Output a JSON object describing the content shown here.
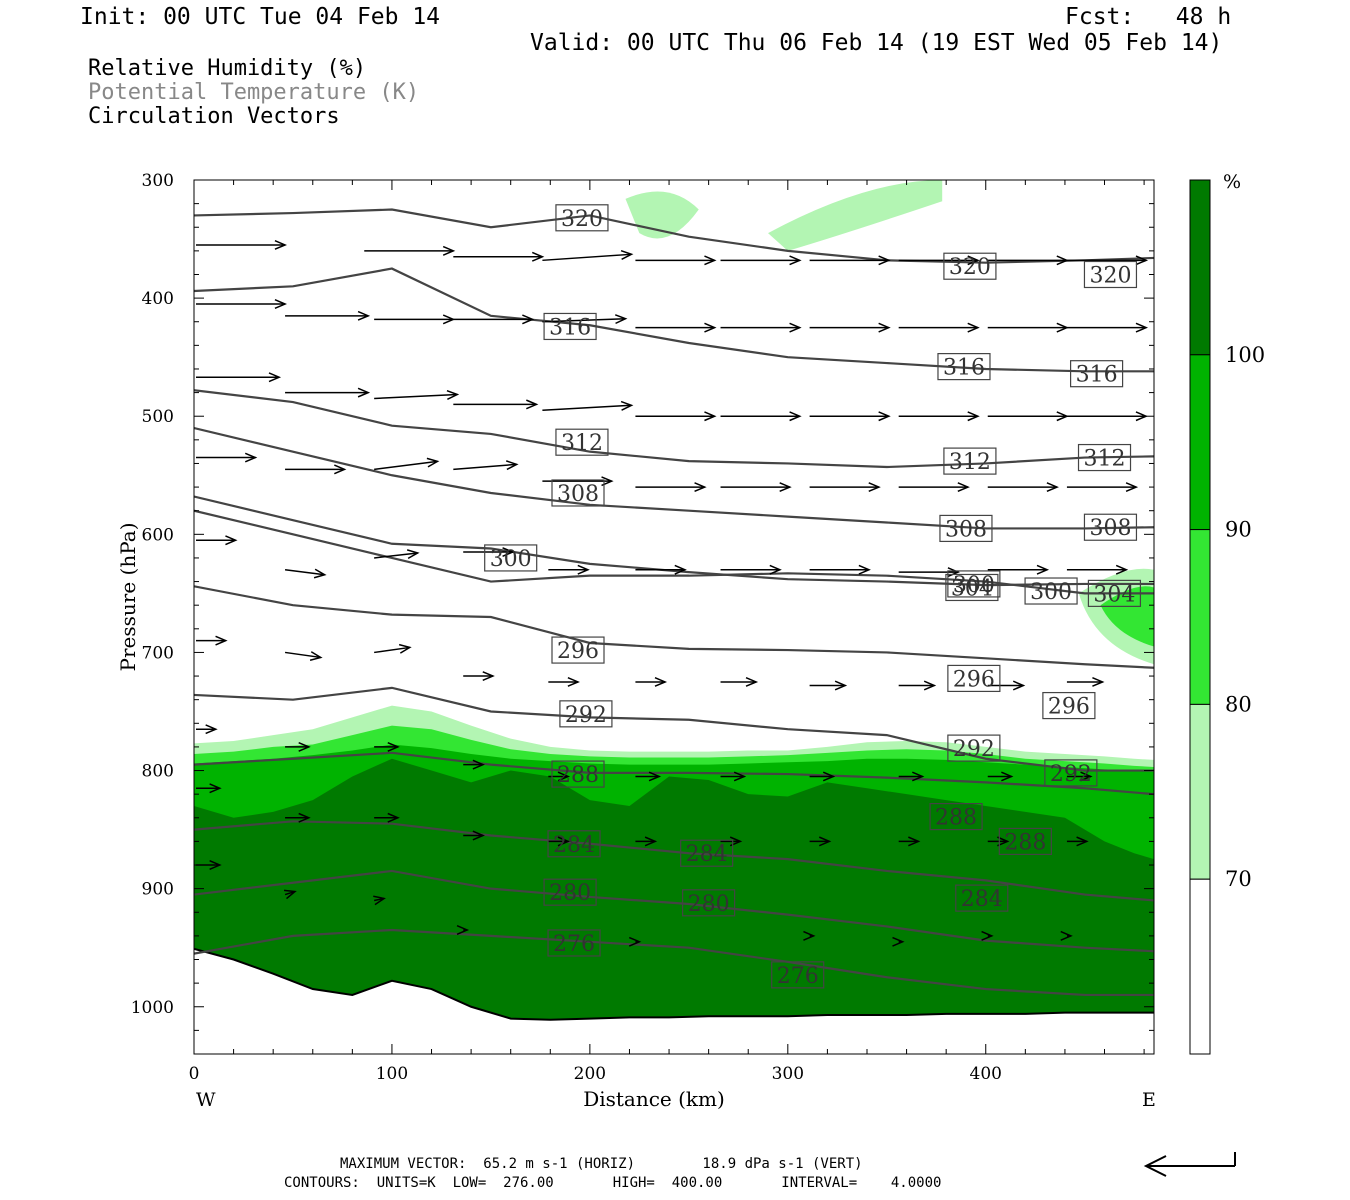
{
  "header": {
    "init": "Init: 00 UTC Tue 04 Feb 14",
    "fcst": "Fcst:   48 h",
    "valid": "Valid: 00 UTC Thu 06 Feb 14 (19 EST Wed 05 Feb 14)"
  },
  "fields": {
    "rh": "Relative Humidity (%)",
    "theta": "Potential Temperature (K)",
    "vectors": "Circulation Vectors"
  },
  "footer": {
    "max_vector": "MAXIMUM VECTOR:  65.2 m s-1 (HORIZ)        18.9 dPa s-1 (VERT)",
    "contours": "CONTOURS:  UNITS=K  LOW=  276.00       HIGH=  400.00       INTERVAL=    4.0000"
  },
  "colors": {
    "rh_70_80": "#b3f5b3",
    "rh_80_90": "#33e633",
    "rh_90_100": "#00b300",
    "rh_100": "#007a00",
    "contour": "#444444"
  },
  "chart_data": {
    "type": "cross-section",
    "xlabel": "Distance (km)",
    "ylabel": "Pressure (hPa)",
    "xlim": [
      0,
      485
    ],
    "ylim": [
      1040,
      300
    ],
    "x_ticks": [
      0,
      100,
      200,
      300,
      400
    ],
    "y_ticks": [
      300,
      400,
      500,
      600,
      700,
      800,
      900,
      1000
    ],
    "x_end_labels": {
      "left": "W",
      "right": "E"
    },
    "colorbar": {
      "unit": "%",
      "levels": [
        70,
        80,
        90,
        100
      ]
    },
    "rh_bands": [
      {
        "rh": "70-80",
        "top_p": [
          777,
          775,
          770,
          765,
          755,
          745,
          750,
          762,
          773,
          780,
          783,
          784,
          784,
          784,
          783,
          783,
          780,
          776,
          775,
          776,
          780,
          784,
          786,
          788,
          790,
          791
        ]
      },
      {
        "rh": "80-90",
        "top_p": [
          786,
          784,
          780,
          778,
          770,
          762,
          765,
          774,
          782,
          786,
          788,
          789,
          789,
          789,
          788,
          787,
          785,
          783,
          782,
          783,
          786,
          790,
          792,
          794,
          796,
          797
        ]
      },
      {
        "rh": "90-100",
        "top_p": [
          794,
          792,
          790,
          787,
          783,
          778,
          781,
          786,
          790,
          792,
          794,
          795,
          795,
          795,
          794,
          793,
          792,
          790,
          790,
          791,
          793,
          795,
          797,
          799,
          800,
          801
        ]
      },
      {
        "rh": "100",
        "top_p": [
          830,
          840,
          835,
          825,
          805,
          790,
          800,
          810,
          800,
          805,
          825,
          830,
          805,
          808,
          820,
          822,
          810,
          815,
          820,
          825,
          830,
          835,
          840,
          860,
          870,
          875
        ]
      }
    ],
    "band_x": [
      0,
      20,
      40,
      60,
      80,
      100,
      120,
      140,
      160,
      180,
      200,
      220,
      240,
      260,
      280,
      300,
      320,
      340,
      360,
      380,
      400,
      420,
      440,
      460,
      475,
      485
    ],
    "surface_p": [
      951,
      960,
      972,
      985,
      990,
      978,
      985,
      1000,
      1010,
      1011,
      1010,
      1009,
      1009,
      1008,
      1008,
      1008,
      1007,
      1007,
      1007,
      1006,
      1006,
      1006,
      1005,
      1005,
      1005,
      1005
    ],
    "theta_x": [
      0,
      50,
      100,
      150,
      200,
      250,
      300,
      350,
      400,
      450,
      485
    ],
    "theta_contours": [
      {
        "label": "320",
        "p": [
          330,
          328,
          325,
          340,
          330,
          348,
          360,
          368,
          370,
          368,
          366
        ],
        "label_pos": [
          [
            196,
            332
          ],
          [
            392,
            373
          ],
          [
            463,
            380
          ]
        ]
      },
      {
        "label": "316",
        "p": [
          394,
          390,
          375,
          415,
          423,
          438,
          450,
          455,
          460,
          462,
          462
        ],
        "label_pos": [
          [
            190,
            424
          ],
          [
            389,
            458
          ],
          [
            456,
            464
          ]
        ]
      },
      {
        "label": "312",
        "p": [
          478,
          488,
          508,
          515,
          530,
          538,
          540,
          543,
          540,
          535,
          534
        ],
        "label_pos": [
          [
            196,
            522
          ],
          [
            392,
            538
          ],
          [
            460,
            535
          ]
        ]
      },
      {
        "label": "308",
        "p": [
          510,
          530,
          550,
          565,
          575,
          580,
          585,
          590,
          595,
          595,
          594
        ],
        "label_pos": [
          [
            194,
            565
          ],
          [
            390,
            595
          ],
          [
            463,
            594
          ]
        ]
      },
      {
        "label": "300",
        "p": [
          568,
          588,
          608,
          612,
          625,
          632,
          638,
          640,
          643,
          642,
          642
        ],
        "label_pos": [
          [
            160,
            620
          ],
          [
            394,
            642
          ],
          [
            433,
            648
          ]
        ]
      },
      {
        "label": "304",
        "p": [
          580,
          600,
          620,
          640,
          635,
          635,
          633,
          635,
          640,
          650,
          650
        ],
        "label_pos": [
          [
            393,
            645
          ],
          [
            465,
            650
          ]
        ]
      },
      {
        "label": "296",
        "p": [
          644,
          660,
          668,
          670,
          692,
          697,
          698,
          700,
          705,
          710,
          713
        ],
        "label_pos": [
          [
            194,
            698
          ],
          [
            394,
            722
          ],
          [
            442,
            745
          ]
        ]
      },
      {
        "label": "292",
        "p": [
          736,
          740,
          730,
          750,
          755,
          757,
          765,
          770,
          790,
          800,
          800
        ],
        "label_pos": [
          [
            198,
            752
          ],
          [
            394,
            781
          ],
          [
            443,
            802
          ]
        ]
      },
      {
        "label": "288",
        "p": [
          795,
          790,
          785,
          795,
          802,
          802,
          803,
          806,
          810,
          815,
          820
        ],
        "label_pos": [
          [
            194,
            803
          ],
          [
            385,
            839
          ],
          [
            420,
            860
          ]
        ]
      },
      {
        "label": "284",
        "p": [
          850,
          843,
          845,
          855,
          862,
          870,
          875,
          885,
          893,
          905,
          910
        ],
        "label_pos": [
          [
            192,
            862
          ],
          [
            259,
            870
          ],
          [
            398,
            908
          ]
        ]
      },
      {
        "label": "280",
        "p": [
          905,
          895,
          885,
          900,
          907,
          913,
          922,
          932,
          944,
          950,
          953
        ],
        "label_pos": [
          [
            190,
            903
          ],
          [
            260,
            912
          ]
        ]
      },
      {
        "label": "276",
        "p": [
          955,
          940,
          935,
          940,
          945,
          950,
          962,
          975,
          985,
          990,
          990
        ],
        "label_pos": [
          [
            192,
            946
          ],
          [
            305,
            973
          ]
        ]
      }
    ],
    "vectors": [
      [
        0,
        355,
        45,
        0
      ],
      [
        85,
        360,
        45,
        0
      ],
      [
        130,
        365,
        45,
        0
      ],
      [
        175,
        368,
        45,
        -6
      ],
      [
        222,
        368,
        40,
        0
      ],
      [
        265,
        368,
        40,
        0
      ],
      [
        310,
        368,
        40,
        0
      ],
      [
        355,
        368,
        40,
        0
      ],
      [
        400,
        368,
        40,
        0
      ],
      [
        440,
        368,
        40,
        0
      ],
      [
        0,
        405,
        45,
        0
      ],
      [
        45,
        415,
        42,
        0
      ],
      [
        90,
        418,
        40,
        0
      ],
      [
        130,
        418,
        40,
        0
      ],
      [
        175,
        420,
        42,
        -3
      ],
      [
        222,
        425,
        40,
        0
      ],
      [
        265,
        425,
        40,
        0
      ],
      [
        310,
        425,
        40,
        0
      ],
      [
        355,
        425,
        40,
        0
      ],
      [
        400,
        425,
        40,
        0
      ],
      [
        440,
        425,
        40,
        0
      ],
      [
        0,
        467,
        42,
        0
      ],
      [
        45,
        480,
        42,
        0
      ],
      [
        90,
        485,
        42,
        -4
      ],
      [
        130,
        490,
        42,
        0
      ],
      [
        175,
        495,
        45,
        -5
      ],
      [
        222,
        500,
        40,
        0
      ],
      [
        265,
        500,
        40,
        0
      ],
      [
        310,
        500,
        40,
        0
      ],
      [
        355,
        500,
        40,
        0
      ],
      [
        400,
        500,
        40,
        0
      ],
      [
        440,
        500,
        40,
        0
      ],
      [
        0,
        535,
        30,
        0
      ],
      [
        45,
        545,
        30,
        0
      ],
      [
        90,
        545,
        32,
        -8
      ],
      [
        130,
        545,
        32,
        -5
      ],
      [
        175,
        555,
        35,
        0
      ],
      [
        222,
        560,
        35,
        0
      ],
      [
        265,
        560,
        35,
        0
      ],
      [
        310,
        560,
        35,
        0
      ],
      [
        355,
        560,
        35,
        0
      ],
      [
        400,
        560,
        35,
        0
      ],
      [
        440,
        560,
        35,
        0
      ],
      [
        0,
        605,
        20,
        0
      ],
      [
        45,
        630,
        20,
        5
      ],
      [
        90,
        620,
        22,
        -5
      ],
      [
        135,
        615,
        25,
        0
      ],
      [
        178,
        630,
        20,
        0
      ],
      [
        222,
        630,
        25,
        0
      ],
      [
        265,
        630,
        30,
        0
      ],
      [
        310,
        630,
        30,
        0
      ],
      [
        355,
        632,
        30,
        0
      ],
      [
        400,
        630,
        30,
        0
      ],
      [
        440,
        630,
        30,
        0
      ],
      [
        0,
        690,
        15,
        0
      ],
      [
        45,
        700,
        18,
        5
      ],
      [
        90,
        700,
        18,
        -5
      ],
      [
        135,
        720,
        15,
        0
      ],
      [
        178,
        725,
        15,
        0
      ],
      [
        222,
        725,
        15,
        0
      ],
      [
        265,
        725,
        18,
        0
      ],
      [
        310,
        728,
        18,
        0
      ],
      [
        355,
        728,
        18,
        0
      ],
      [
        400,
        728,
        18,
        0
      ],
      [
        440,
        725,
        18,
        0
      ],
      [
        0,
        765,
        10,
        0
      ],
      [
        45,
        780,
        12,
        0
      ],
      [
        90,
        780,
        12,
        0
      ],
      [
        135,
        795,
        10,
        0
      ],
      [
        178,
        805,
        10,
        0
      ],
      [
        222,
        805,
        12,
        0
      ],
      [
        265,
        805,
        12,
        0
      ],
      [
        310,
        805,
        12,
        0
      ],
      [
        355,
        805,
        12,
        0
      ],
      [
        400,
        805,
        12,
        0
      ],
      [
        440,
        805,
        12,
        0
      ],
      [
        0,
        815,
        12,
        0
      ],
      [
        45,
        840,
        12,
        0
      ],
      [
        90,
        840,
        12,
        0
      ],
      [
        135,
        855,
        10,
        0
      ],
      [
        178,
        860,
        10,
        0
      ],
      [
        222,
        860,
        10,
        0
      ],
      [
        265,
        860,
        10,
        0
      ],
      [
        310,
        860,
        10,
        0
      ],
      [
        355,
        860,
        10,
        0
      ],
      [
        400,
        860,
        10,
        0
      ],
      [
        440,
        860,
        10,
        0
      ],
      [
        0,
        880,
        12,
        0
      ],
      [
        45,
        905,
        5,
        -3
      ],
      [
        90,
        910,
        5,
        -2
      ],
      [
        135,
        935,
        2,
        0
      ],
      [
        222,
        945,
        2,
        0
      ],
      [
        310,
        940,
        2,
        0
      ],
      [
        355,
        945,
        2,
        0
      ],
      [
        400,
        940,
        2,
        0
      ],
      [
        440,
        940,
        2,
        0
      ]
    ]
  }
}
